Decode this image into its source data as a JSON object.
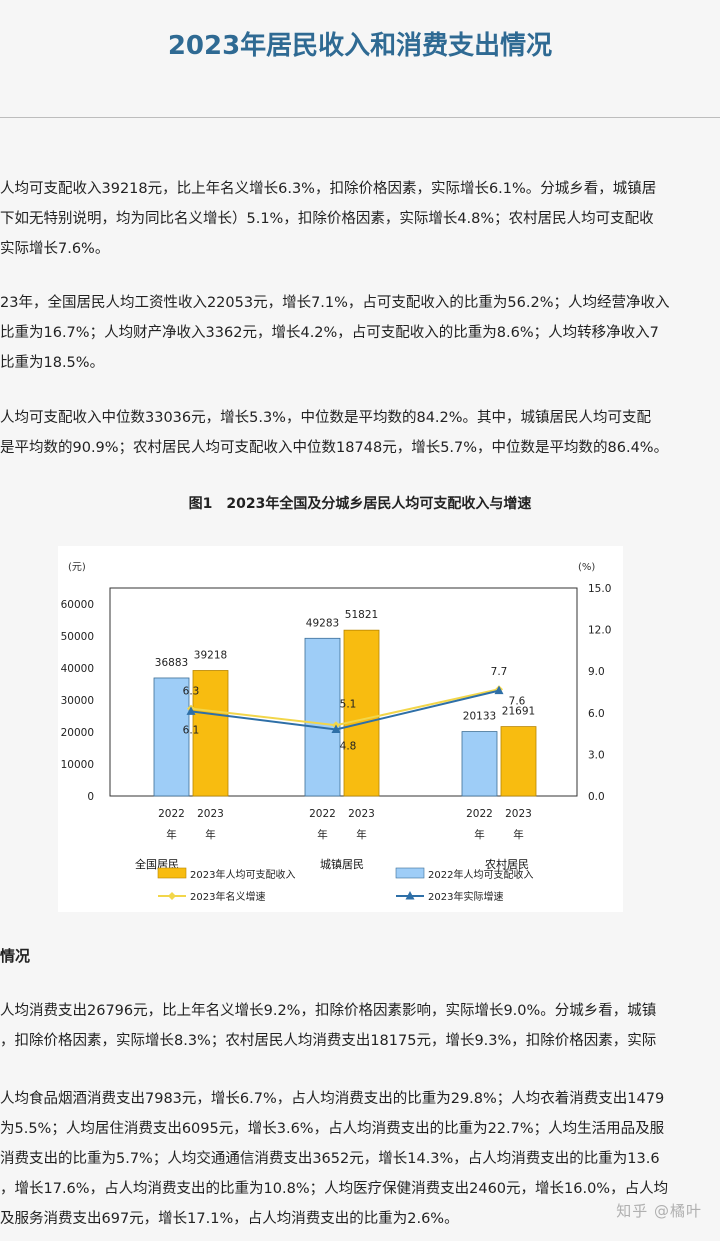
{
  "page": {
    "title": "2023年居民收入和消费支出情况"
  },
  "paragraphs_top": [
    {
      "lines": [
        "人均可支配收入39218元，比上年名义增长6.3%，扣除价格因素，实际增长6.1%。分城乡看，城镇居",
        "下如无特别说明，均为同比名义增长）5.1%，扣除价格因素，实际增长4.8%；农村居民人均可支配收",
        "实际增长7.6%。"
      ]
    },
    {
      "lines": [
        "23年，全国居民人均工资性收入22053元，增长7.1%，占可支配收入的比重为56.2%；人均经营净收入",
        "比重为16.7%；人均财产净收入3362元，增长4.2%，占可支配收入的比重为8.6%；人均转移净收入7",
        "比重为18.5%。"
      ]
    },
    {
      "lines": [
        "人均可支配收入中位数33036元，增长5.3%，中位数是平均数的84.2%。其中，城镇居民人均可支配",
        "是平均数的90.9%；农村居民人均可支配收入中位数18748元，增长5.7%，中位数是平均数的86.4%。"
      ]
    }
  ],
  "figure": {
    "caption": "图1　2023年全国及分城乡居民人均可支配收入与增速"
  },
  "chart_data": {
    "type": "bar",
    "categories": [
      "全国居民",
      "城镇居民",
      "农村居民"
    ],
    "year_labels": [
      "2022年",
      "2023年"
    ],
    "left_axis": {
      "unit": "(元)",
      "ticks": [
        "0",
        "10000",
        "20000",
        "30000",
        "40000",
        "50000",
        "60000"
      ],
      "ylim": [
        0,
        65000
      ]
    },
    "right_axis": {
      "unit": "(%)",
      "ticks": [
        "0.0",
        "3.0",
        "6.0",
        "9.0",
        "12.0",
        "15.0"
      ],
      "ylim": [
        0,
        15
      ]
    },
    "series": [
      {
        "name": "2022年人均可支配收入",
        "color": "#9ecdf7",
        "values": [
          36883,
          49283,
          20133
        ],
        "labels": [
          "36883",
          "49283",
          "20133"
        ]
      },
      {
        "name": "2023年人均可支配收入",
        "color": "#f8bc10",
        "values": [
          39218,
          51821,
          21691
        ],
        "labels": [
          "39218",
          "51821",
          "21691"
        ]
      },
      {
        "name": "2023年名义增速",
        "color": "#f2d64a",
        "type": "line",
        "values": [
          6.3,
          5.1,
          7.7
        ],
        "labels": [
          "6.3",
          "5.1",
          "7.7"
        ]
      },
      {
        "name": "2023年实际增速",
        "color": "#2e6fa7",
        "type": "line",
        "values": [
          6.1,
          4.8,
          7.6
        ],
        "labels": [
          "6.1",
          "4.8",
          "7.6"
        ]
      }
    ],
    "legend_placement": "bottom"
  },
  "section": {
    "heading": "情况"
  },
  "paragraphs_bottom": [
    {
      "lines": [
        "人均消费支出26796元，比上年名义增长9.2%，扣除价格因素影响，实际增长9.0%。分城乡看，城镇",
        "，扣除价格因素，实际增长8.3%；农村居民人均消费支出18175元，增长9.3%，扣除价格因素，实际"
      ]
    },
    {
      "lines": [
        "人均食品烟酒消费支出7983元，增长6.7%，占人均消费支出的比重为29.8%；人均衣着消费支出1479",
        "为5.5%；人均居住消费支出6095元，增长3.6%，占人均消费支出的比重为22.7%；人均生活用品及服",
        "消费支出的比重为5.7%；人均交通通信消费支出3652元，增长14.3%，占人均消费支出的比重为13.6",
        "，增长17.6%，占人均消费支出的比重为10.8%；人均医疗保健消费支出2460元，增长16.0%，占人均",
        "及服务消费支出697元，增长17.1%，占人均消费支出的比重为2.6%。"
      ]
    }
  ],
  "watermark": "知乎 @橘叶"
}
